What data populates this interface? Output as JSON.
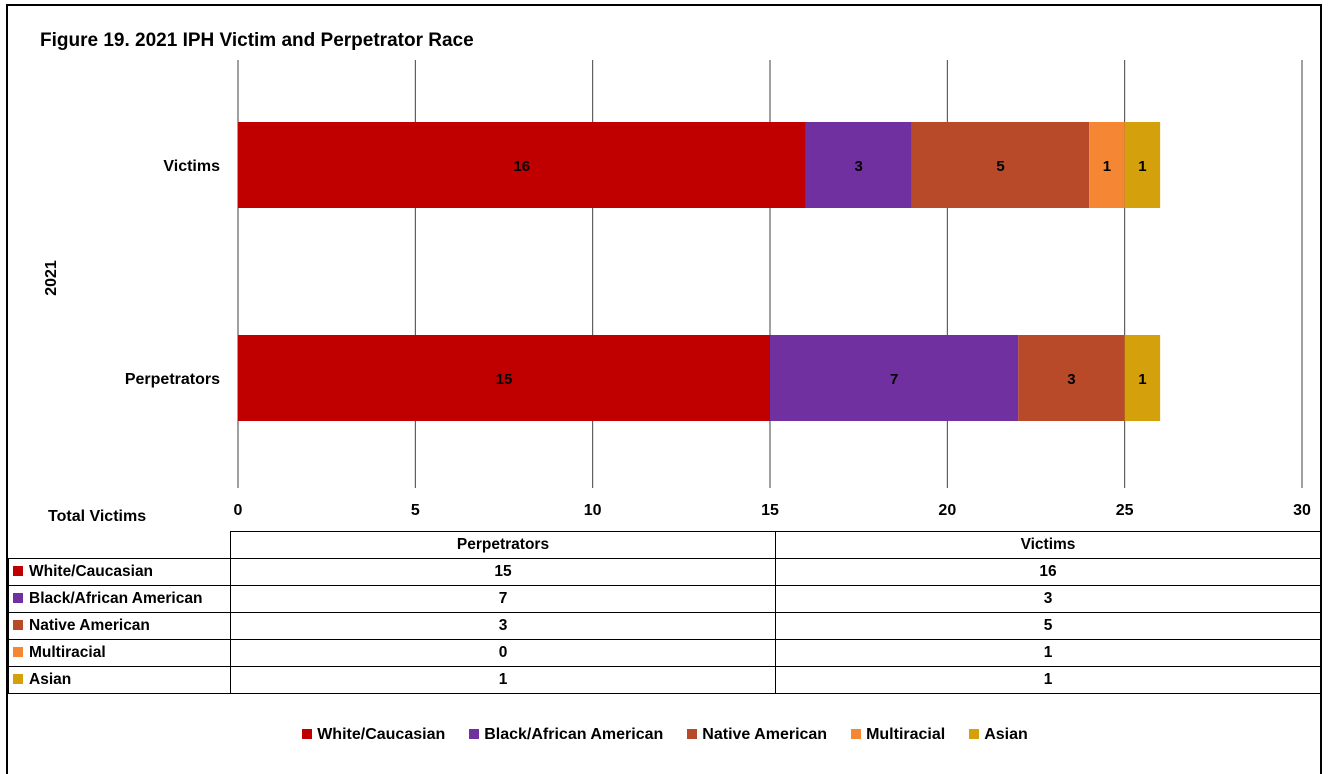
{
  "chart_data": {
    "type": "bar",
    "orientation": "horizontal",
    "stacked": true,
    "title": "Figure 19. 2021 IPH Victim and Perpetrator Race",
    "group_label": "2021",
    "categories": [
      "Victims",
      "Perpetrators"
    ],
    "table_columns": [
      "Perpetrators",
      "Victims"
    ],
    "table_corner_label": "Total Victims",
    "xlim": [
      0,
      30
    ],
    "xticks": [
      0,
      5,
      10,
      15,
      20,
      25,
      30
    ],
    "grid": true,
    "legend_placement": "bottom",
    "series": [
      {
        "name": "White/Caucasian",
        "color": "#c00000",
        "values": {
          "Victims": 16,
          "Perpetrators": 15
        }
      },
      {
        "name": "Black/African American",
        "color": "#7030a0",
        "values": {
          "Victims": 3,
          "Perpetrators": 7
        }
      },
      {
        "name": "Native American",
        "color": "#b84a2a",
        "values": {
          "Victims": 5,
          "Perpetrators": 3
        }
      },
      {
        "name": "Multiracial",
        "color": "#f58634",
        "values": {
          "Victims": 1,
          "Perpetrators": 0
        }
      },
      {
        "name": "Asian",
        "color": "#d4a00c",
        "values": {
          "Victims": 1,
          "Perpetrators": 1
        }
      }
    ]
  }
}
